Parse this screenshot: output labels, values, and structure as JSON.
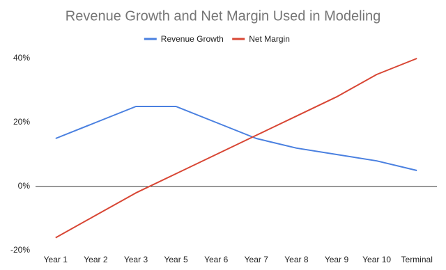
{
  "chart_data": {
    "type": "line",
    "title": "Revenue Growth and Net Margin Used in Modeling",
    "categories": [
      "Year 1",
      "Year 2",
      "Year 3",
      "Year 5",
      "Year 6",
      "Year 7",
      "Year 8",
      "Year 9",
      "Year 10",
      "Terminal"
    ],
    "series": [
      {
        "name": "Revenue Growth",
        "color": "#4a80e0",
        "values": [
          15,
          20,
          25,
          25,
          20,
          15,
          12,
          10,
          8,
          5
        ]
      },
      {
        "name": "Net Margin",
        "color": "#d84634",
        "values": [
          -16,
          -9,
          -2,
          4,
          10,
          16,
          22,
          28,
          35,
          40
        ]
      }
    ],
    "ylim": [
      -20,
      40
    ],
    "yticks": [
      {
        "value": -20,
        "label": "-20%"
      },
      {
        "value": 0,
        "label": "0%"
      },
      {
        "value": 20,
        "label": "20%"
      },
      {
        "value": 40,
        "label": "40%"
      }
    ],
    "grid": false,
    "legend": "top"
  }
}
